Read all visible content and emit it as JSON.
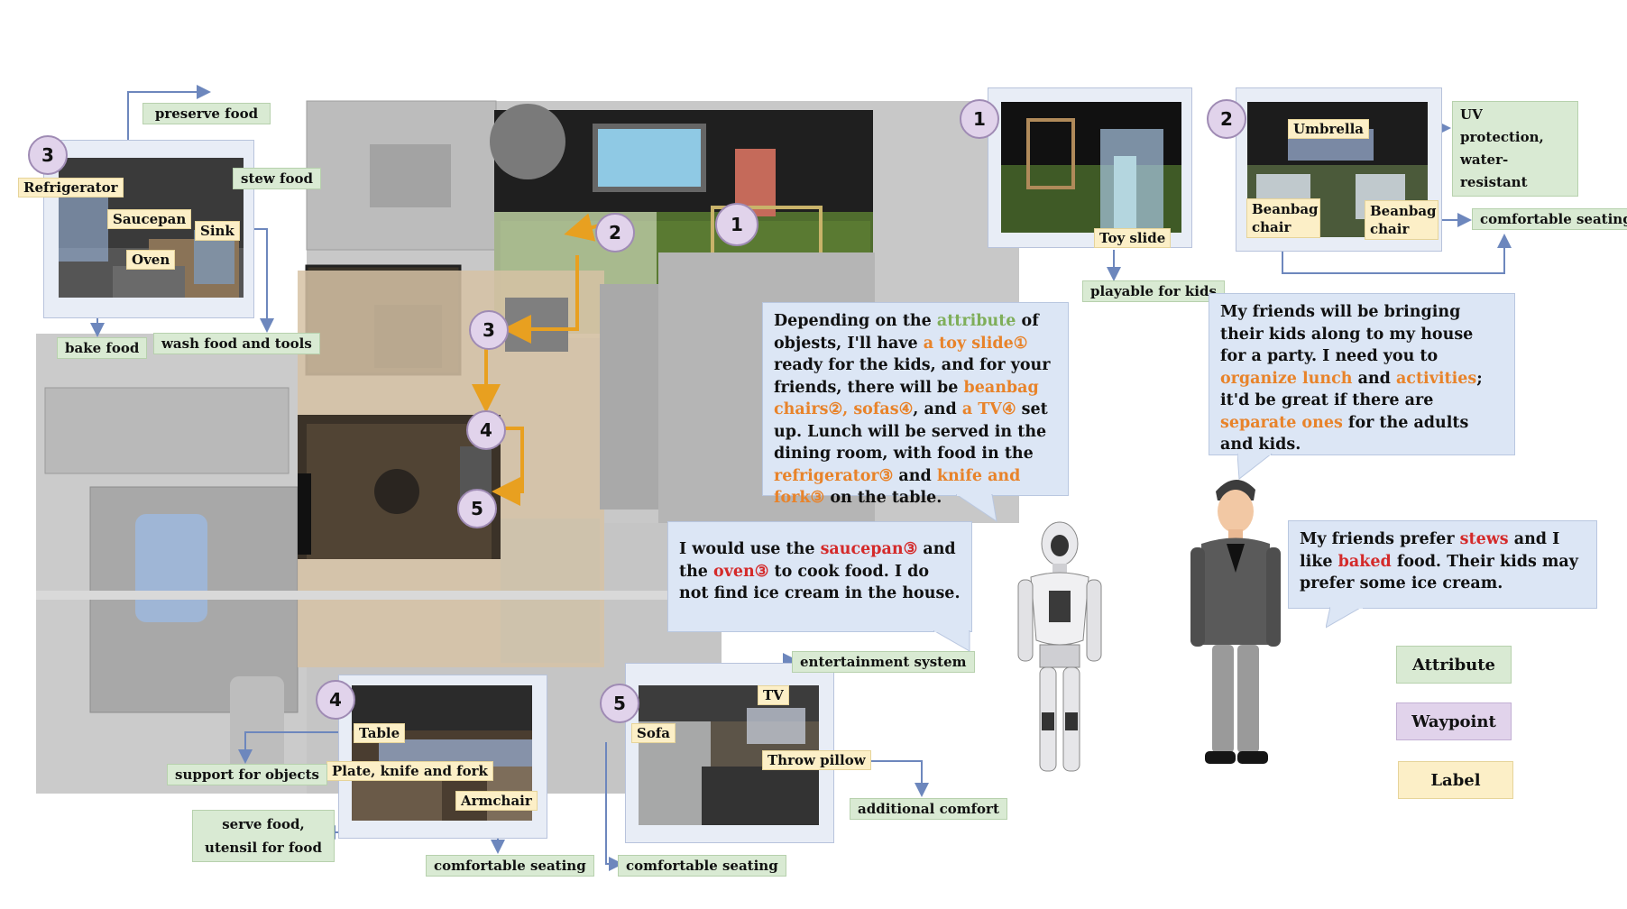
{
  "waypoints": [
    "1",
    "2",
    "3",
    "4",
    "5"
  ],
  "attributes": {
    "preserve_food": "preserve food",
    "stew_food": "stew food",
    "bake_food": "bake food",
    "wash_food": "wash food and tools",
    "playable": "playable for kids",
    "uv": "UV protection, water-resistant",
    "comfortable_2": "comfortable seating",
    "support": "support for objects",
    "serve_food": "serve food, utensil for food",
    "comfortable_4": "comfortable seating",
    "entertainment": "entertainment system",
    "additional_comfort": "additional comfort",
    "comfortable_5": "comfortable seating"
  },
  "labels": {
    "refrigerator": "Refrigerator",
    "saucepan": "Saucepan",
    "sink": "Sink",
    "oven": "Oven",
    "toy_slide": "Toy slide",
    "umbrella": "Umbrella",
    "beanbag1": "Beanbag chair",
    "beanbag2": "Beanbag chair",
    "table": "Table",
    "plate": "Plate, knife and fork",
    "armchair": "Armchair",
    "sofa": "Sofa",
    "tv": "TV",
    "throw_pillow": "Throw pillow"
  },
  "robot_plan": {
    "p1": "Depending on the ",
    "attribute": "attribute",
    "p2": " of objests, I'll have ",
    "toy_slide": "a toy slide①",
    "p3": " ready for the kids, and for your friends, there will be ",
    "beanbag": "beanbag chairs②,",
    "sofas": "sofas④",
    "p4": ", and ",
    "tv": "a TV④",
    "p5": " set up. Lunch will be served in the dining room, with food in the ",
    "refrigerator": "refrigerator③",
    "p6": " and ",
    "knife": "knife and fork③",
    "p7": " on the table."
  },
  "robot_cook": {
    "p1": "I would use the ",
    "saucepan": "saucepan③",
    "p2": " and the ",
    "oven": "oven③",
    "p3": " to cook food. I do not find ice cream in the house."
  },
  "human_request": {
    "p1": "My friends will be bringing their kids along to my house for a party. I need you to ",
    "organize": "organize lunch",
    "p2": " and ",
    "activities": "activities",
    "p3": "; it'd be great if there are ",
    "separate": "separate ones",
    "p4": " for the adults and kids."
  },
  "human_pref": {
    "p1": "My friends prefer ",
    "stews": "stews",
    "p2": " and I like ",
    "baked": "baked",
    "p3": " food. Their kids may prefer some ice cream."
  },
  "legend": {
    "attribute": "Attribute",
    "waypoint": "Waypoint",
    "label": "Label"
  },
  "colors": {
    "attribute_bg": "#d9ead3",
    "waypoint_bg": "#e1d3eb",
    "label_bg": "#fcefc7",
    "bubble_bg": "#dce6f5",
    "orange": "#e8832a",
    "red": "#d42a2a",
    "green": "#7fae5a",
    "path": "#e8a020",
    "connector": "#6d87bd"
  }
}
